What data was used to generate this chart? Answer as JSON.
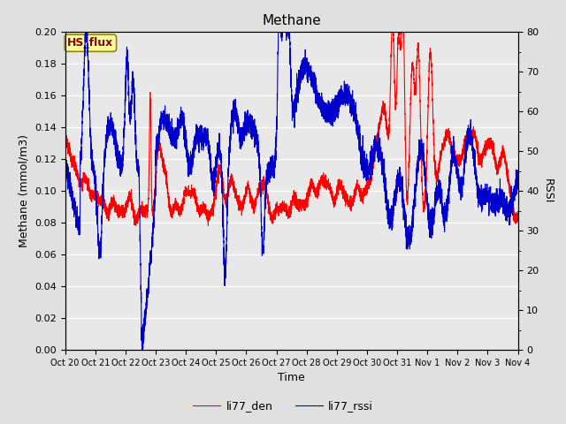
{
  "title": "Methane",
  "xlabel": "Time",
  "ylabel_left": "Methane (mmol/m3)",
  "ylabel_right": "RSSI",
  "legend_label1": "li77_den",
  "legend_label2": "li77_rssi",
  "annotation_text": "HS_flux",
  "ylim_left": [
    0.0,
    0.2
  ],
  "ylim_right": [
    0,
    80
  ],
  "yticks_left": [
    0.0,
    0.02,
    0.04,
    0.06,
    0.08,
    0.1,
    0.12,
    0.14,
    0.16,
    0.18,
    0.2
  ],
  "yticks_right": [
    0,
    10,
    20,
    30,
    40,
    50,
    60,
    70,
    80
  ],
  "color_red": "#FF0000",
  "color_blue": "#0000CC",
  "bg_color": "#E0E0E0",
  "plot_bg": "#E8E8E8",
  "annotation_bg": "#FFFFA0",
  "annotation_border": "#A08000",
  "title_fontsize": 11,
  "label_fontsize": 9,
  "tick_fontsize": 8,
  "legend_fontsize": 9,
  "x_tick_labels": [
    "Oct 20",
    "Oct 21",
    "Oct 22",
    "Oct 23",
    "Oct 24",
    "Oct 25",
    "Oct 26",
    "Oct 27",
    "Oct 28",
    "Oct 29",
    "Oct 30",
    "Oct 31",
    "Nov 1",
    "Nov 2",
    "Nov 3",
    "Nov 4"
  ],
  "num_days": 15
}
